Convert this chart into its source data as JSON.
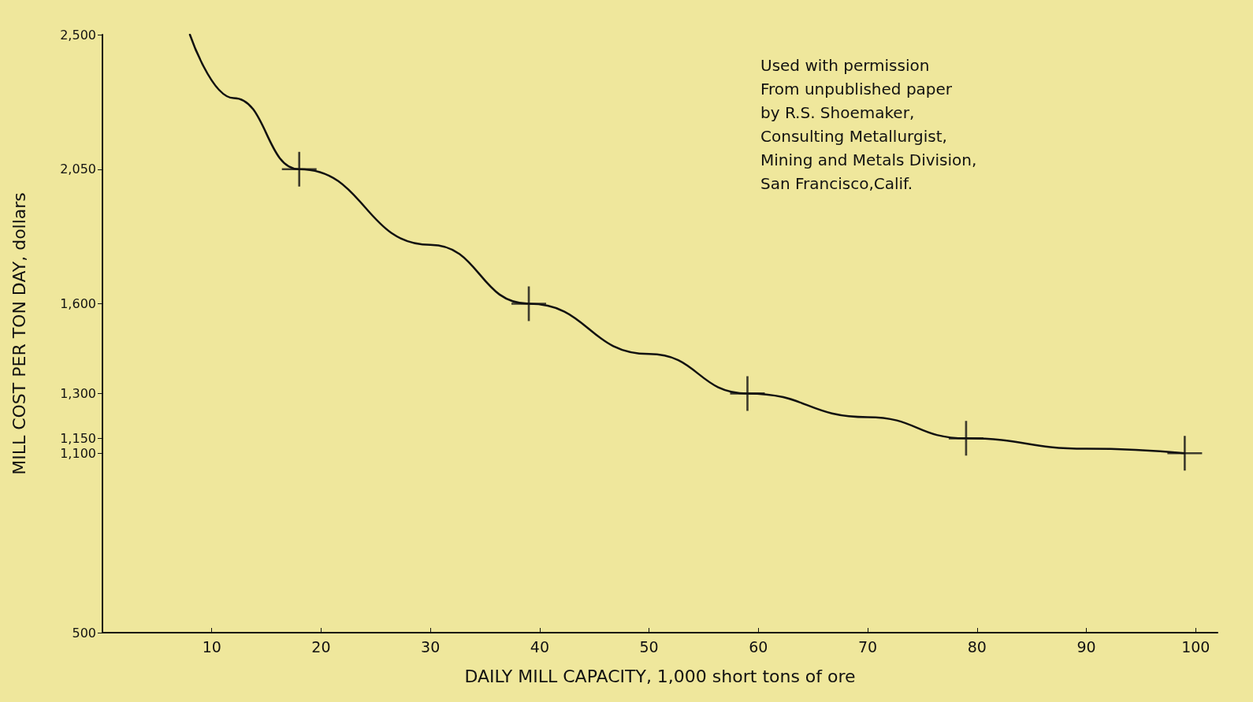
{
  "chart_data": {
    "type": "line",
    "xlabel": "DAILY MILL CAPACITY, 1,000 short tons of ore",
    "ylabel": "MILL COST PER TON DAY, dollars",
    "xlim": [
      0,
      102
    ],
    "xticks": [
      10,
      20,
      30,
      40,
      50,
      60,
      70,
      80,
      90,
      100
    ],
    "ylim": [
      500,
      2500
    ],
    "yticks": [
      500,
      {
        "value": 1100,
        "label": "1,100"
      },
      {
        "value": 1150,
        "label": "1,150"
      },
      {
        "value": 1300,
        "label": "1,300"
      },
      {
        "value": 1600,
        "label": "1,600"
      },
      {
        "value": 2050,
        "label": "2,050"
      },
      {
        "value": 2500,
        "label": "2,500"
      }
    ],
    "grid": false,
    "series": [
      {
        "color": "#111111",
        "marker": "none",
        "x": [
          8,
          12,
          18,
          30,
          39,
          50,
          59,
          70,
          79,
          90,
          99
        ],
        "values": [
          2500,
          2288,
          2050,
          1797,
          1600,
          1432,
          1300,
          1221,
          1150,
          1115,
          1100
        ]
      },
      {
        "type": "scatter",
        "color": "#111111",
        "marker": "cross",
        "x": [
          18,
          39,
          59,
          79,
          99
        ],
        "values": [
          2050,
          1600,
          1300,
          1150,
          1100
        ]
      }
    ],
    "annotations": [
      "Used with permission",
      "From unpublished paper",
      "by R.S. Shoemaker,",
      "Consulting Metallurgist,",
      "Mining and Metals Division,",
      "San Francisco,Calif."
    ]
  }
}
